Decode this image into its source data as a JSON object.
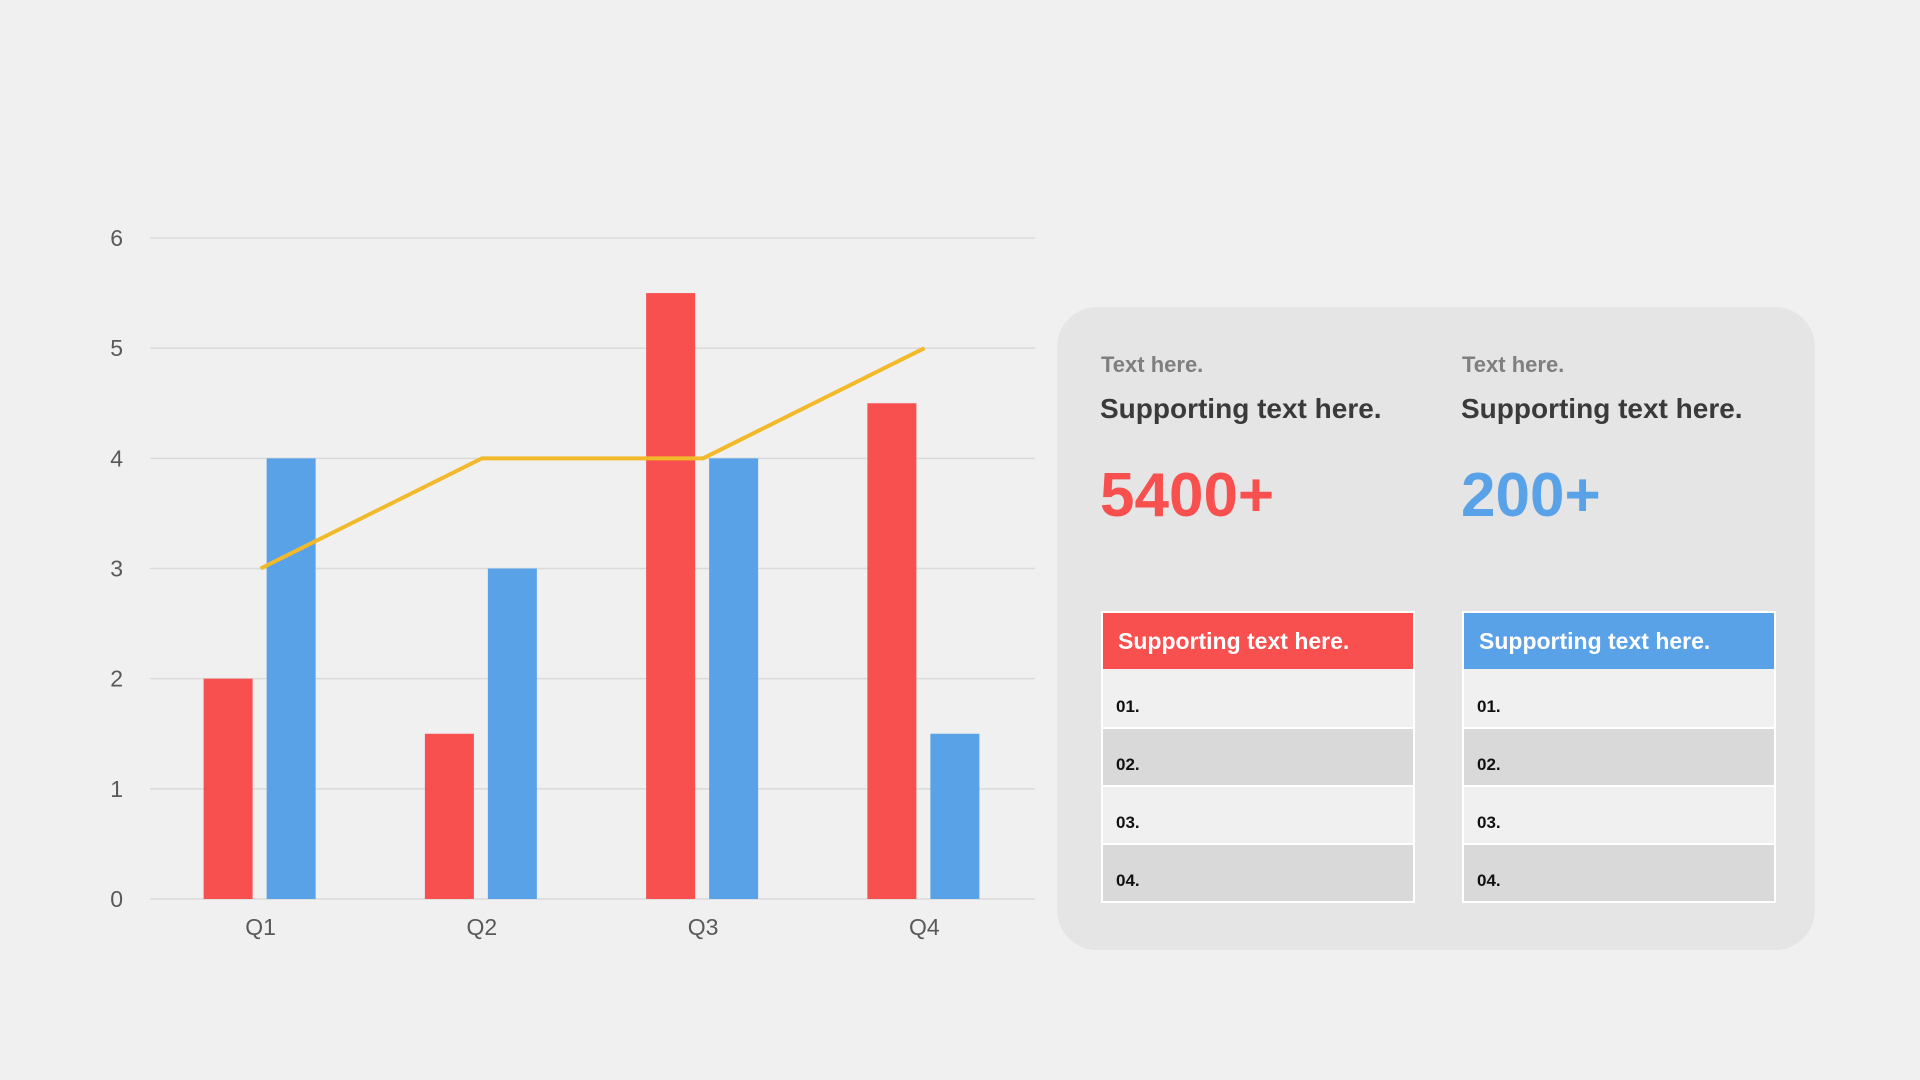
{
  "colors": {
    "red": "#f84f4f",
    "blue": "#5aa2e8",
    "line": "#f2ba2a",
    "grid": "#dadada",
    "tick": "#595959"
  },
  "chart_data": {
    "type": "bar",
    "categories": [
      "Q1",
      "Q2",
      "Q3",
      "Q4"
    ],
    "series": [
      {
        "values": [
          2,
          1.5,
          5.5,
          4.5
        ],
        "color": "#f84f4f"
      },
      {
        "values": [
          4,
          3,
          4,
          1.5
        ],
        "color": "#5aa2e8"
      },
      {
        "type": "line",
        "values": [
          3,
          4,
          4,
          5
        ],
        "color": "#f2ba2a"
      }
    ],
    "ylim": [
      0,
      6
    ],
    "yticks": [
      "0",
      "1",
      "2",
      "3",
      "4",
      "5",
      "6"
    ],
    "grid": true,
    "title": "",
    "xlabel": "",
    "ylabel": ""
  },
  "cards": [
    {
      "small_label": "Text here.",
      "support_label": "Supporting text here.",
      "big_number": "5400+",
      "table_header": "Supporting text here.",
      "rows": [
        "01.",
        "02.",
        "03.",
        "04."
      ]
    },
    {
      "small_label": "Text here.",
      "support_label": "Supporting text here.",
      "big_number": "200+",
      "table_header": "Supporting text here.",
      "rows": [
        "01.",
        "02.",
        "03.",
        "04."
      ]
    }
  ]
}
